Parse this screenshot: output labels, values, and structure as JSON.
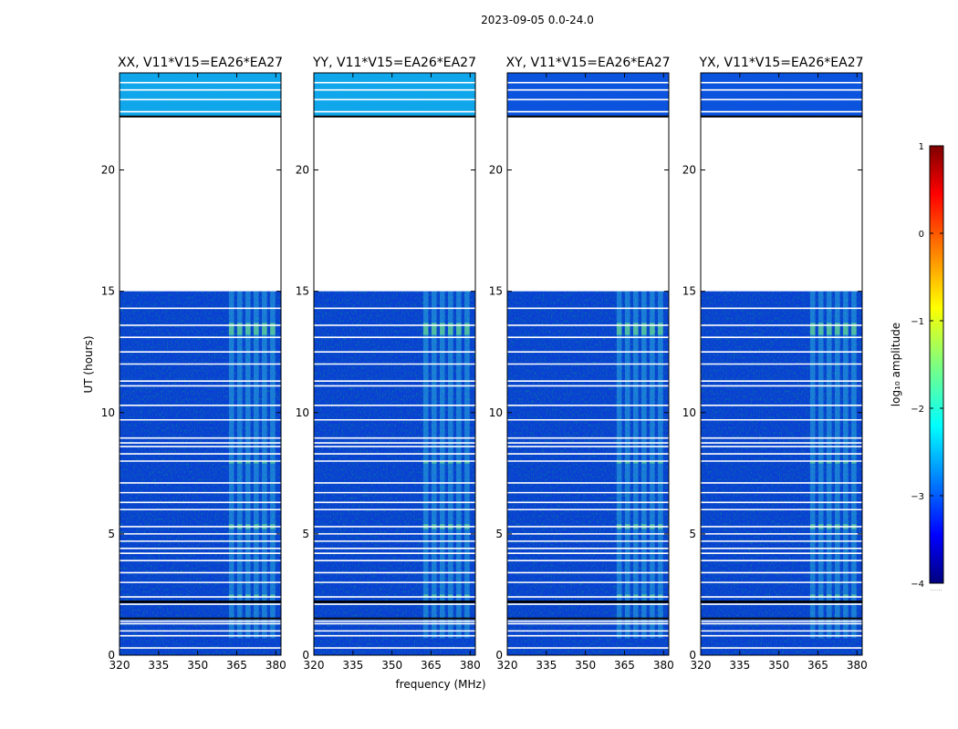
{
  "chart_data": {
    "type": "heatmap",
    "title": "2023-09-05 0.0-24.0",
    "xlabel": "frequency (MHz)",
    "ylabel": "UT (hours)",
    "xlim": [
      320,
      382
    ],
    "ylim": [
      0,
      24
    ],
    "xticks": [
      320,
      335,
      350,
      365,
      380
    ],
    "yticks": [
      0,
      5,
      10,
      15,
      20
    ],
    "panels": [
      {
        "id": "xx",
        "title": "XX, V11*V15=EA26*EA27"
      },
      {
        "id": "yy",
        "title": "YY, V11*V15=EA26*EA27"
      },
      {
        "id": "xy",
        "title": "XY, V11*V15=EA26*EA27"
      },
      {
        "id": "yx",
        "title": "YX, V11*V15=EA26*EA27"
      }
    ],
    "data_gap_hours": [
      15.0,
      22.2
    ],
    "flagged_hours": [
      0.3,
      0.8,
      1.0,
      1.3,
      1.4,
      1.5,
      2.1,
      2.2,
      2.4,
      3.0,
      3.4,
      3.9,
      4.2,
      4.4,
      4.7,
      5.0,
      5.3,
      6.0,
      6.3,
      6.7,
      7.1,
      8.0,
      8.3,
      8.6,
      8.75,
      8.95,
      9.7,
      10.3,
      11.1,
      11.3,
      12.0,
      12.5,
      13.1,
      13.6,
      14.3,
      22.4,
      22.9,
      23.3,
      23.6
    ],
    "bright_band_mhz": [
      362,
      381
    ],
    "colorbar": {
      "label": "log₁₀ amplitude",
      "range": [
        -4,
        1
      ],
      "ticks": [
        "1",
        "0",
        "−1",
        "−2",
        "−3",
        "−4"
      ],
      "colormap": "jet"
    },
    "colorbar_minor_label": "......"
  }
}
